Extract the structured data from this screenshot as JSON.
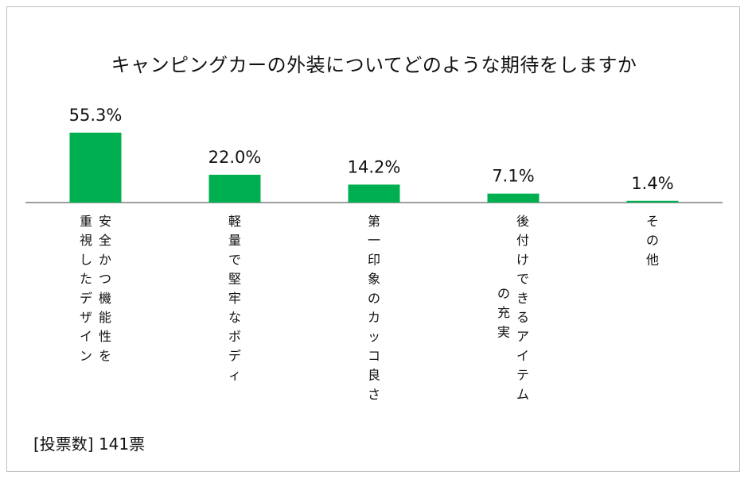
{
  "chart_data": {
    "type": "bar",
    "title": "キャンピングカーの外装についてどのような期待をしますか",
    "categories": [
      [
        "安全かつ機能性を",
        "重視したデザイン"
      ],
      [
        "軽量で堅牢なボディ"
      ],
      [
        "第一印象のカッコ良さ"
      ],
      [
        "後付けできるアイテム",
        "の充実"
      ],
      [
        "その他"
      ]
    ],
    "values": [
      55.3,
      22.0,
      14.2,
      7.1,
      1.4
    ],
    "value_labels": [
      "55.3%",
      "22.0%",
      "14.2%",
      "7.1%",
      "1.4%"
    ],
    "unit": "%",
    "bar_color": "#00b050",
    "axis_color": "#7f7f7f",
    "ylim": [
      0,
      55.3
    ],
    "grid": false,
    "legend": "none"
  },
  "footer": {
    "vote_count": "[投票数] 141票"
  }
}
